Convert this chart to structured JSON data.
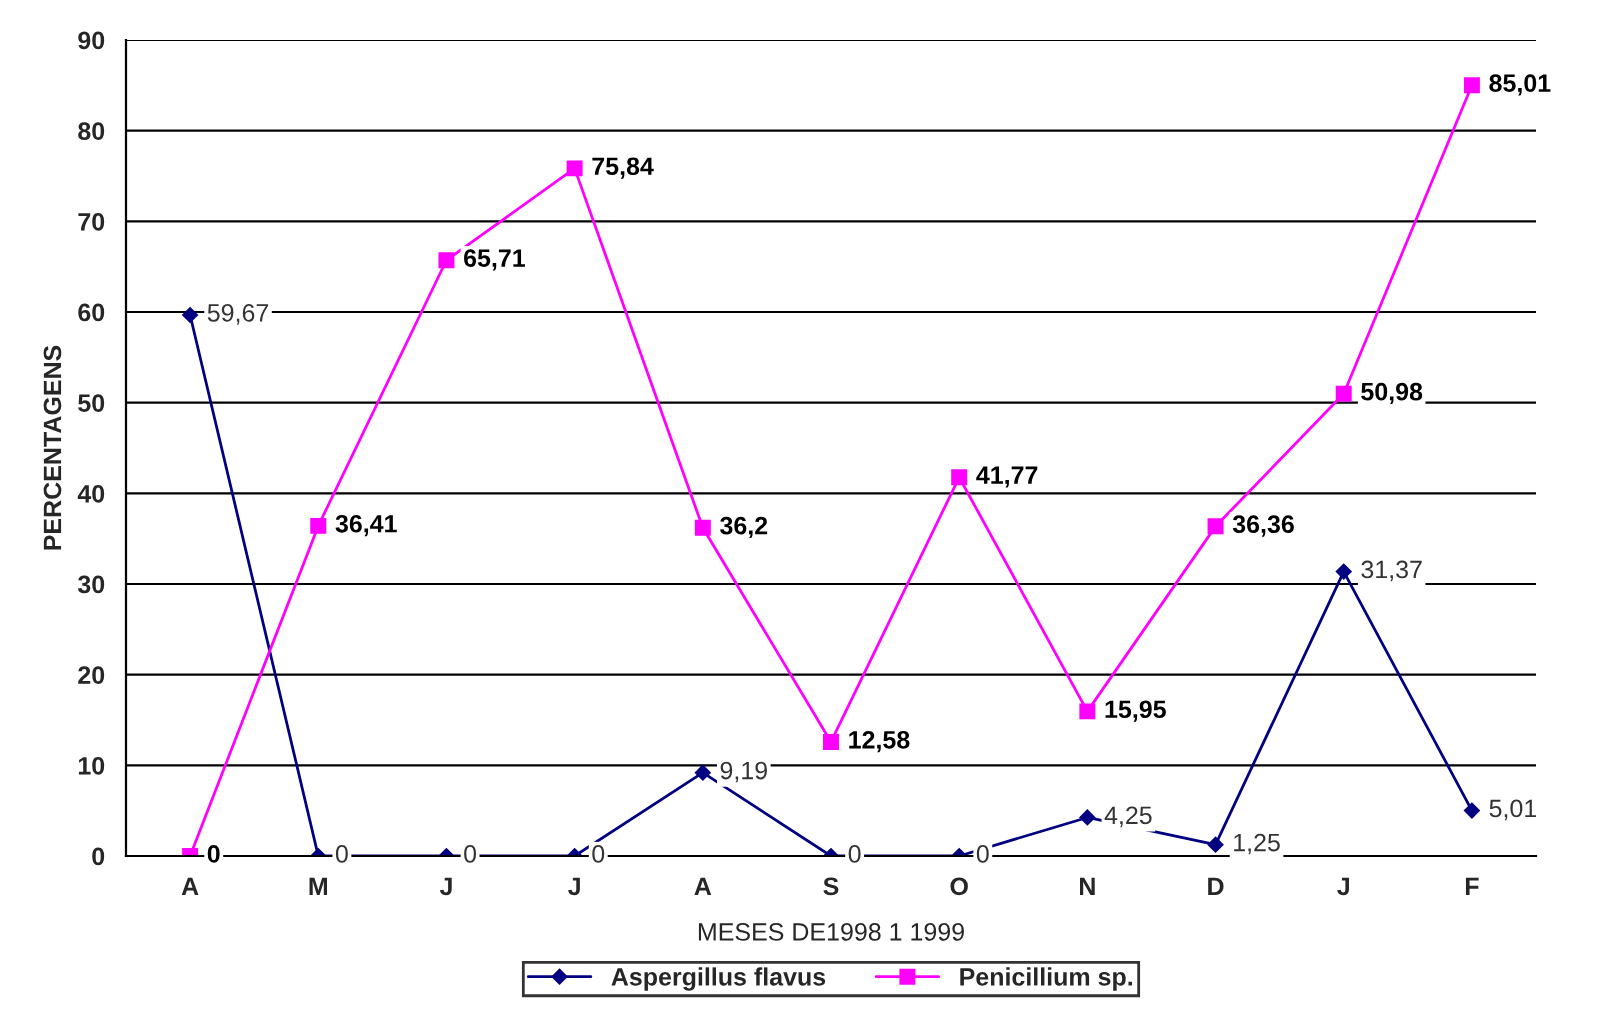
{
  "chart_data": {
    "type": "line",
    "xlabel": "MESES DE1998 1 1999",
    "ylabel": "PERCENTAGENS",
    "categories": [
      "A",
      "M",
      "J",
      "J",
      "A",
      "S",
      "O",
      "N",
      "D",
      "J",
      "F"
    ],
    "ylim": [
      0,
      90
    ],
    "yticks": [
      0,
      10,
      20,
      30,
      40,
      50,
      60,
      70,
      80,
      90
    ],
    "grid": "y",
    "legend": "bottom",
    "series": [
      {
        "name": "Aspergillus flavus",
        "color": "#000080",
        "marker": "diamond",
        "values": [
          59.67,
          0,
          0,
          0,
          9.19,
          0,
          0,
          4.25,
          1.25,
          31.37,
          5.01
        ],
        "value_labels": [
          "59,67",
          "0",
          "0",
          "0",
          "9,19",
          "0",
          "0",
          "4,25",
          "1,25",
          "31,37",
          "5,01"
        ]
      },
      {
        "name": "Penicillium sp.",
        "color": "#ff00ff",
        "marker": "square",
        "values": [
          0,
          36.41,
          65.71,
          75.84,
          36.2,
          12.58,
          41.77,
          15.95,
          36.36,
          50.98,
          85.01
        ],
        "value_labels": [
          "0",
          "36,41",
          "65,71",
          "75,84",
          "36,2",
          "12,58",
          "41,77",
          "15,95",
          "36,36",
          "50,98",
          "85,01"
        ]
      }
    ]
  }
}
